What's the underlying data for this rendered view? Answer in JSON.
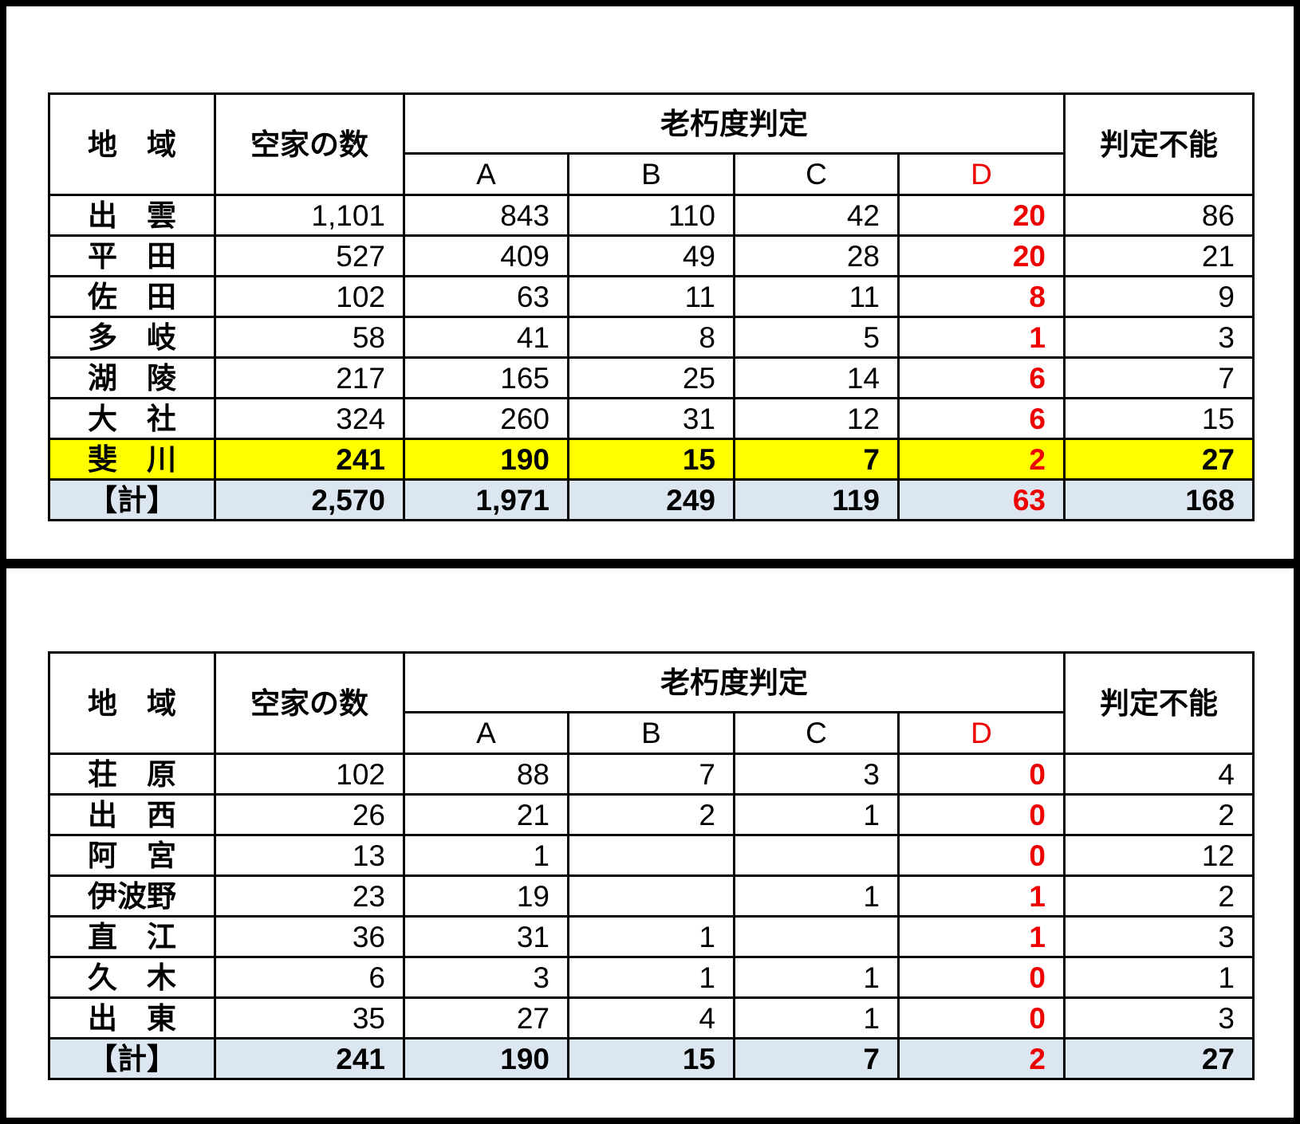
{
  "tables": [
    {
      "headers": {
        "region": "地　域",
        "count": "空家の数",
        "group": "老朽度判定",
        "grades": [
          "A",
          "B",
          "C",
          "D"
        ],
        "unknown": "判定不能"
      },
      "rows": [
        [
          "出　雲",
          "1,101",
          "843",
          "110",
          "42",
          "20",
          "86"
        ],
        [
          "平　田",
          "527",
          "409",
          "49",
          "28",
          "20",
          "21"
        ],
        [
          "佐　田",
          "102",
          "63",
          "11",
          "11",
          "8",
          "9"
        ],
        [
          "多　岐",
          "58",
          "41",
          "8",
          "5",
          "1",
          "3"
        ],
        [
          "湖　陵",
          "217",
          "165",
          "25",
          "14",
          "6",
          "7"
        ],
        [
          "大　社",
          "324",
          "260",
          "31",
          "12",
          "6",
          "15"
        ],
        [
          "斐　川",
          "241",
          "190",
          "15",
          "7",
          "2",
          "27"
        ]
      ],
      "total": [
        "【計】",
        "2,570",
        "1,971",
        "249",
        "119",
        "63",
        "168"
      ]
    },
    {
      "headers": {
        "region": "地　域",
        "count": "空家の数",
        "group": "老朽度判定",
        "grades": [
          "A",
          "B",
          "C",
          "D"
        ],
        "unknown": "判定不能"
      },
      "rows": [
        [
          "荘　原",
          "102",
          "88",
          "7",
          "3",
          "0",
          "4"
        ],
        [
          "出　西",
          "26",
          "21",
          "2",
          "1",
          "0",
          "2"
        ],
        [
          "阿　宮",
          "13",
          "1",
          null,
          null,
          "0",
          "12"
        ],
        [
          "伊波野",
          "23",
          "19",
          null,
          "1",
          "1",
          "2"
        ],
        [
          "直　江",
          "36",
          "31",
          "1",
          null,
          "1",
          "3"
        ],
        [
          "久　木",
          "6",
          "3",
          "1",
          "1",
          "0",
          "1"
        ],
        [
          "出　東",
          "35",
          "27",
          "4",
          "1",
          "0",
          "3"
        ]
      ],
      "total": [
        "【計】",
        "241",
        "190",
        "15",
        "7",
        "2",
        "27"
      ]
    }
  ]
}
